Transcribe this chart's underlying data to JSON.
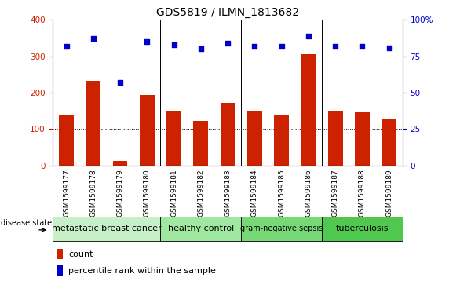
{
  "title": "GDS5819 / ILMN_1813682",
  "samples": [
    "GSM1599177",
    "GSM1599178",
    "GSM1599179",
    "GSM1599180",
    "GSM1599181",
    "GSM1599182",
    "GSM1599183",
    "GSM1599184",
    "GSM1599185",
    "GSM1599186",
    "GSM1599187",
    "GSM1599188",
    "GSM1599189"
  ],
  "counts": [
    138,
    232,
    12,
    193,
    150,
    122,
    172,
    150,
    138,
    305,
    150,
    145,
    128
  ],
  "percentiles": [
    82,
    87,
    57,
    85,
    83,
    80,
    84,
    82,
    82,
    89,
    82,
    82,
    81
  ],
  "groups": [
    {
      "label": "metastatic breast cancer",
      "start": 0,
      "end": 3,
      "color": "#c8f0c8",
      "fontsize": 8
    },
    {
      "label": "healthy control",
      "start": 4,
      "end": 6,
      "color": "#a0e8a0",
      "fontsize": 8
    },
    {
      "label": "gram-negative sepsis",
      "start": 7,
      "end": 9,
      "color": "#78d878",
      "fontsize": 7
    },
    {
      "label": "tuberculosis",
      "start": 10,
      "end": 12,
      "color": "#50c850",
      "fontsize": 8
    }
  ],
  "bar_color": "#cc2200",
  "dot_color": "#0000cc",
  "ylim_left": [
    0,
    400
  ],
  "ylim_right": [
    0,
    100
  ],
  "yticks_left": [
    0,
    100,
    200,
    300,
    400
  ],
  "yticks_right": [
    0,
    25,
    50,
    75,
    100
  ],
  "grid_values": [
    100,
    200,
    300,
    400
  ],
  "tick_area_color": "#d8d8d8",
  "legend_count_color": "#cc2200",
  "legend_dot_color": "#0000cc"
}
